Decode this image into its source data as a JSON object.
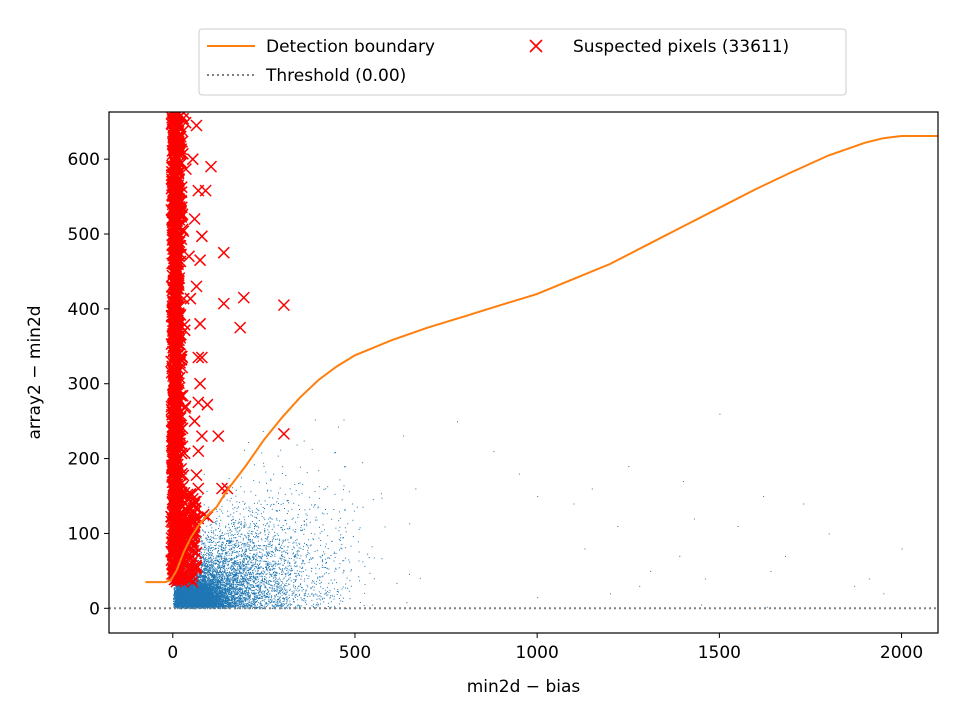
{
  "chart_data": {
    "type": "scatter",
    "title": "",
    "xlabel": "min2d − bias",
    "ylabel": "array2 − min2d",
    "xlim": [
      -175,
      2100
    ],
    "ylim": [
      -33,
      663
    ],
    "xticks": [
      0,
      500,
      1000,
      1500,
      2000
    ],
    "yticks": [
      0,
      100,
      200,
      300,
      400,
      500,
      600
    ],
    "grid": false,
    "legend_position": "top-center-outside",
    "colors": {
      "boundary": "#ff7f0e",
      "threshold": "#808080",
      "suspected": "#ff0000",
      "pixels": "#1f77b4"
    },
    "legend": [
      {
        "key": "boundary",
        "label": "Detection boundary"
      },
      {
        "key": "threshold",
        "label": "Threshold (0.00)"
      },
      {
        "key": "suspected",
        "label": "Suspected pixels (33611)"
      }
    ],
    "series": [
      {
        "name": "Detection boundary",
        "kind": "line",
        "x": [
          -75,
          -50,
          -20,
          -5,
          10,
          30,
          50,
          70,
          90,
          120,
          150,
          200,
          250,
          300,
          350,
          400,
          450,
          500,
          600,
          700,
          800,
          900,
          1000,
          1100,
          1200,
          1300,
          1400,
          1500,
          1600,
          1700,
          1800,
          1900,
          1950,
          2000,
          2050,
          2100
        ],
        "y": [
          35,
          35,
          35,
          38,
          50,
          75,
          95,
          110,
          122,
          135,
          158,
          190,
          225,
          255,
          282,
          305,
          323,
          338,
          358,
          375,
          390,
          405,
          420,
          440,
          460,
          485,
          510,
          535,
          560,
          583,
          605,
          622,
          628,
          631,
          631,
          631
        ]
      },
      {
        "name": "Threshold (0.00)",
        "kind": "hline",
        "y": 0
      },
      {
        "name": "Suspected pixels",
        "kind": "markers",
        "count": 33611,
        "dense_band": {
          "x": [
            -5,
            45
          ],
          "y": [
            35,
            663
          ]
        },
        "points": [
          [
            105,
            590
          ],
          [
            90,
            558
          ],
          [
            70,
            558
          ],
          [
            140,
            475
          ],
          [
            80,
            497
          ],
          [
            75,
            465
          ],
          [
            195,
            415
          ],
          [
            140,
            407
          ],
          [
            305,
            405
          ],
          [
            185,
            375
          ],
          [
            75,
            380
          ],
          [
            80,
            335
          ],
          [
            70,
            335
          ],
          [
            75,
            300
          ],
          [
            70,
            275
          ],
          [
            95,
            272
          ],
          [
            80,
            230
          ],
          [
            125,
            230
          ],
          [
            305,
            233
          ],
          [
            70,
            210
          ],
          [
            65,
            178
          ],
          [
            135,
            160
          ],
          [
            150,
            160
          ],
          [
            70,
            160
          ],
          [
            85,
            125
          ],
          [
            95,
            122
          ],
          [
            70,
            120
          ],
          [
            60,
            110
          ],
          [
            55,
            140
          ],
          [
            60,
            250
          ],
          [
            65,
            430
          ],
          [
            60,
            520
          ],
          [
            55,
            600
          ],
          [
            65,
            645
          ]
        ]
      },
      {
        "name": "Pixels",
        "kind": "scatter",
        "dense_cluster": {
          "x": [
            0,
            200
          ],
          "y": [
            0,
            60
          ]
        },
        "spread_cluster": {
          "x": [
            50,
            550
          ],
          "y": [
            0,
            250
          ]
        },
        "outliers": [
          [
            780,
            250
          ],
          [
            880,
            210
          ],
          [
            950,
            180
          ],
          [
            1000,
            150
          ],
          [
            1100,
            140
          ],
          [
            1130,
            80
          ],
          [
            1150,
            160
          ],
          [
            1220,
            110
          ],
          [
            1250,
            190
          ],
          [
            1280,
            30
          ],
          [
            1310,
            50
          ],
          [
            1390,
            70
          ],
          [
            1400,
            170
          ],
          [
            1430,
            120
          ],
          [
            1460,
            40
          ],
          [
            1500,
            260
          ],
          [
            1550,
            110
          ],
          [
            1620,
            150
          ],
          [
            1640,
            50
          ],
          [
            1680,
            70
          ],
          [
            1730,
            140
          ],
          [
            1800,
            100
          ],
          [
            1870,
            30
          ],
          [
            1910,
            40
          ],
          [
            1950,
            20
          ],
          [
            2000,
            80
          ],
          [
            1200,
            20
          ],
          [
            1000,
            15
          ],
          [
            1450,
            5
          ],
          [
            1630,
            2
          ]
        ]
      }
    ]
  }
}
